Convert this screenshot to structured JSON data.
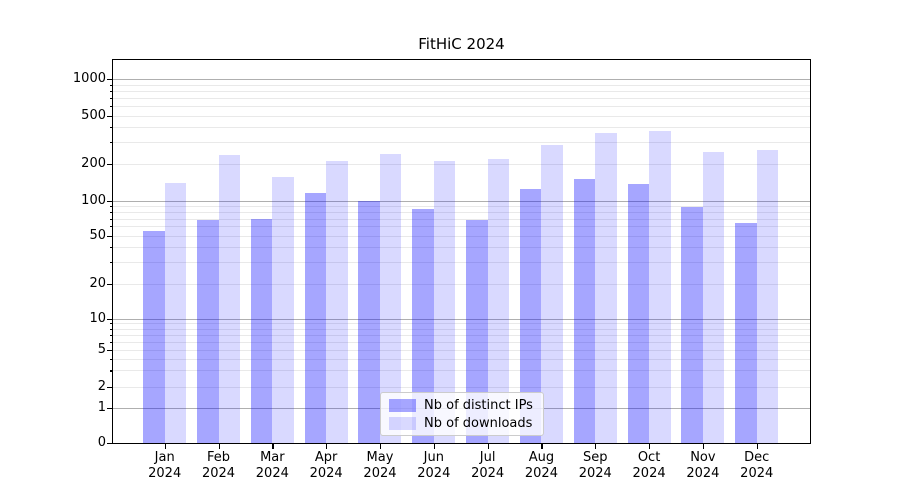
{
  "chart_data": {
    "type": "bar",
    "title": "FitHiC 2024",
    "categories": [
      "Jan 2024",
      "Feb 2024",
      "Mar 2024",
      "Apr 2024",
      "May 2024",
      "Jun 2024",
      "Jul 2024",
      "Aug 2024",
      "Sep 2024",
      "Oct 2024",
      "Nov 2024",
      "Dec 2024"
    ],
    "series": [
      {
        "name": "Nb of distinct IPs",
        "color": "#0000ff",
        "opacity": 0.35,
        "values": [
          55,
          68,
          70,
          115,
          100,
          85,
          68,
          125,
          150,
          137,
          88,
          64
        ]
      },
      {
        "name": "Nb of downloads",
        "color": "#0000ff",
        "opacity": 0.15,
        "values": [
          140,
          235,
          155,
          210,
          240,
          210,
          220,
          285,
          360,
          375,
          250,
          260
        ]
      }
    ],
    "yscale": "symlog",
    "yticks": [
      0,
      1,
      2,
      5,
      10,
      20,
      50,
      100,
      200,
      500,
      1000
    ],
    "ylim": [
      0,
      1400
    ],
    "xlabel": "",
    "ylabel": "",
    "grid": true,
    "legend_position": "lower center",
    "grid_major_color": "#afafaf",
    "grid_minor_color": "#e9e9e9"
  }
}
